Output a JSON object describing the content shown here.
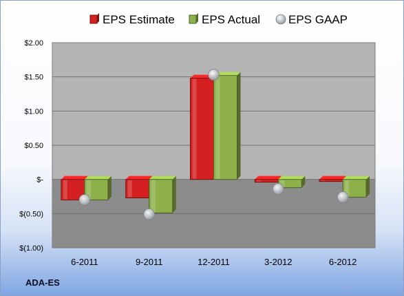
{
  "ticker": "ADA-ES",
  "chart_data": {
    "type": "bar",
    "categories": [
      "6-2011",
      "9-2011",
      "12-2011",
      "3-2012",
      "6-2012"
    ],
    "series": [
      {
        "name": "EPS Estimate",
        "kind": "bar",
        "color": "#d42020",
        "values": [
          -0.3,
          -0.27,
          1.48,
          -0.04,
          -0.03
        ]
      },
      {
        "name": "EPS Actual",
        "kind": "bar",
        "color": "#8db04a",
        "values": [
          -0.3,
          -0.49,
          1.52,
          -0.12,
          -0.26
        ]
      },
      {
        "name": "EPS GAAP",
        "kind": "marker",
        "color": "#b8bcc4",
        "values": [
          -0.3,
          -0.51,
          1.53,
          -0.14,
          -0.26
        ]
      }
    ],
    "y_ticks": [
      {
        "value": 2.0,
        "label": "$2.00"
      },
      {
        "value": 1.5,
        "label": "$1.50"
      },
      {
        "value": 1.0,
        "label": "$1.00"
      },
      {
        "value": 0.5,
        "label": "$0.50"
      },
      {
        "value": 0.0,
        "label": "$-"
      },
      {
        "value": -0.5,
        "label": "$(0.50)"
      },
      {
        "value": -1.0,
        "label": "$(1.00)"
      }
    ],
    "ylim": [
      -1.0,
      2.0
    ],
    "grid": true,
    "legend_position": "top"
  }
}
